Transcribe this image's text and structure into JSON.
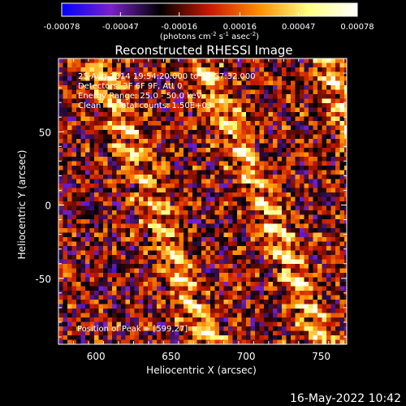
{
  "chart_data": {
    "type": "heatmap",
    "title": "Reconstructed RHESSI Image",
    "xlabel": "Heliocentric X (arcsec)",
    "ylabel": "Heliocentric Y (arcsec)",
    "xlim": [
      575,
      767
    ],
    "ylim": [
      -95,
      100
    ],
    "x_ticks": [
      {
        "value": 600,
        "label": "600"
      },
      {
        "value": 650,
        "label": "650"
      },
      {
        "value": 700,
        "label": "700"
      },
      {
        "value": 750,
        "label": "750"
      }
    ],
    "y_ticks": [
      {
        "value": 50,
        "label": "50"
      },
      {
        "value": 0,
        "label": "0"
      },
      {
        "value": -50,
        "label": "-50"
      }
    ],
    "colorbar": {
      "min": -0.00078,
      "max": 0.00078,
      "tick_values": [
        -0.00078,
        -0.00047,
        -0.00016,
        0.00016,
        0.00047,
        0.00078
      ],
      "tick_labels": [
        "-0.00078",
        "-0.00047",
        "-0.00016",
        "0.00016",
        "0.00047",
        "0.00078"
      ],
      "unit_label": "(photons cm⁻² s⁻¹ asec⁻²)",
      "colormap_stops": [
        "#0000ff",
        "#7a22c8",
        "#000000",
        "#c81800",
        "#ff8c00",
        "#ffff80",
        "#ffffff"
      ]
    },
    "bands": [
      {
        "x_at_top": 600,
        "x_at_bottom": 675,
        "peak": 0.00074
      },
      {
        "x_at_top": 670,
        "x_at_bottom": 752,
        "peak": 0.00078
      },
      {
        "x_at_top": 752,
        "x_at_bottom": 820,
        "peak": 0.0007
      }
    ],
    "annotations": {
      "time_range": "25-Aug-2014 19:54:20.000 to 19:57:32.000",
      "detectors": "Detectors: 3F 6F 9F, Att 0",
      "energy_range": "Energy Range: 25.0 - 50.0 keV",
      "clean": "Clean",
      "total_counts": "Total counts: 1.50E+03",
      "peak_position": "Position of Peak = [599,27]"
    },
    "footer_date": "16-May-2022 10:42"
  }
}
